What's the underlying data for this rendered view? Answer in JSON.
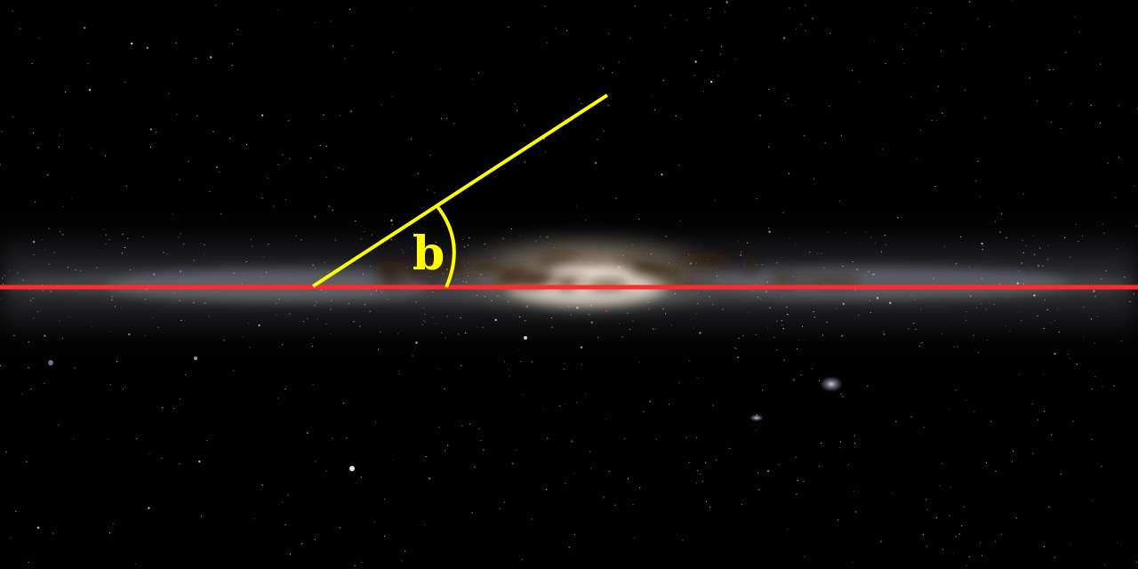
{
  "diagram": {
    "angle_label": "b",
    "colors": {
      "background": "#020203",
      "galactic_plane_line": "#ff2a2a",
      "latitude_ray": "#ffff00",
      "angle_arc": "#ffff00",
      "angle_label": "#ffff00",
      "milky_way_glow": "#d8d0c0",
      "galactic_core": "#fff3dc",
      "dust_lanes": "#2a1608"
    },
    "elements": [
      "milky-way-panorama",
      "galactic-plane-line",
      "latitude-ray",
      "angle-arc",
      "angle-label"
    ]
  }
}
